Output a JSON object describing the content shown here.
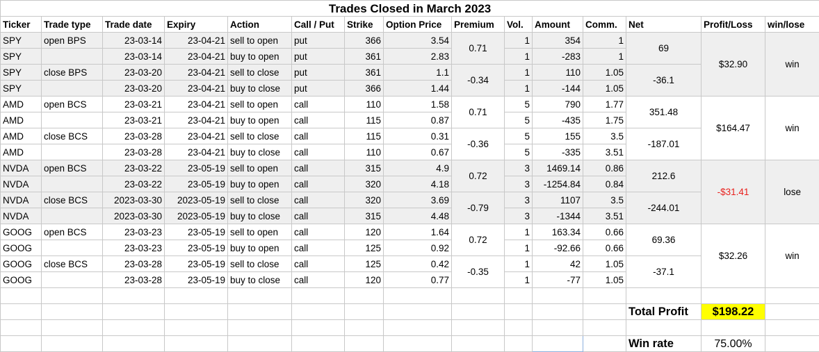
{
  "title": "Trades Closed in March 2023",
  "headers": [
    "Ticker",
    "Trade type",
    "Trade date",
    "Expiry",
    "Action",
    "Call / Put",
    "Strike",
    "Option Price",
    "Premium",
    "Vol.",
    "Amount",
    "Comm.",
    "Net",
    "Profit/Loss",
    "win/lose"
  ],
  "groups": [
    {
      "rows": [
        {
          "ticker": "SPY",
          "type": "open BPS",
          "date": "23-03-14",
          "expiry": "23-04-21",
          "action": "sell to open",
          "cp": "put",
          "strike": "366",
          "price": "3.54",
          "vol": "1",
          "amount": "354",
          "comm": "1"
        },
        {
          "ticker": "SPY",
          "type": "",
          "date": "23-03-14",
          "expiry": "23-04-21",
          "action": "buy to open",
          "cp": "put",
          "strike": "361",
          "price": "2.83",
          "vol": "1",
          "amount": "-283",
          "comm": "1"
        },
        {
          "ticker": "SPY",
          "type": "close BPS",
          "date": "23-03-20",
          "expiry": "23-04-21",
          "action": "sell to close",
          "cp": "put",
          "strike": "361",
          "price": "1.1",
          "vol": "1",
          "amount": "110",
          "comm": "1.05"
        },
        {
          "ticker": "SPY",
          "type": "",
          "date": "23-03-20",
          "expiry": "23-04-21",
          "action": "buy to close",
          "cp": "put",
          "strike": "366",
          "price": "1.44",
          "vol": "1",
          "amount": "-144",
          "comm": "1.05"
        }
      ],
      "premium_open": "0.71",
      "premium_close": "-0.34",
      "net_open": "69",
      "net_close": "-36.1",
      "pl": "$32.90",
      "result": "win"
    },
    {
      "rows": [
        {
          "ticker": "AMD",
          "type": "open BCS",
          "date": "23-03-21",
          "expiry": "23-04-21",
          "action": "sell to open",
          "cp": "call",
          "strike": "110",
          "price": "1.58",
          "vol": "5",
          "amount": "790",
          "comm": "1.77"
        },
        {
          "ticker": "AMD",
          "type": "",
          "date": "23-03-21",
          "expiry": "23-04-21",
          "action": "buy to open",
          "cp": "call",
          "strike": "115",
          "price": "0.87",
          "vol": "5",
          "amount": "-435",
          "comm": "1.75"
        },
        {
          "ticker": "AMD",
          "type": "close BCS",
          "date": "23-03-28",
          "expiry": "23-04-21",
          "action": "sell to close",
          "cp": "call",
          "strike": "115",
          "price": "0.31",
          "vol": "5",
          "amount": "155",
          "comm": "3.5"
        },
        {
          "ticker": "AMD",
          "type": "",
          "date": "23-03-28",
          "expiry": "23-04-21",
          "action": "buy to close",
          "cp": "call",
          "strike": "110",
          "price": "0.67",
          "vol": "5",
          "amount": "-335",
          "comm": "3.51"
        }
      ],
      "premium_open": "0.71",
      "premium_close": "-0.36",
      "net_open": "351.48",
      "net_close": "-187.01",
      "pl": "$164.47",
      "result": "win"
    },
    {
      "rows": [
        {
          "ticker": "NVDA",
          "type": "open BCS",
          "date": "23-03-22",
          "expiry": "23-05-19",
          "action": "sell to open",
          "cp": "call",
          "strike": "315",
          "price": "4.9",
          "vol": "3",
          "amount": "1469.14",
          "comm": "0.86"
        },
        {
          "ticker": "NVDA",
          "type": "",
          "date": "23-03-22",
          "expiry": "23-05-19",
          "action": "buy to open",
          "cp": "call",
          "strike": "320",
          "price": "4.18",
          "vol": "3",
          "amount": "-1254.84",
          "comm": "0.84"
        },
        {
          "ticker": "NVDA",
          "type": "close BCS",
          "date": "2023-03-30",
          "expiry": "2023-05-19",
          "action": "sell to close",
          "cp": "call",
          "strike": "320",
          "price": "3.69",
          "vol": "3",
          "amount": "1107",
          "comm": "3.5"
        },
        {
          "ticker": "NVDA",
          "type": "",
          "date": "2023-03-30",
          "expiry": "2023-05-19",
          "action": "buy to close",
          "cp": "call",
          "strike": "315",
          "price": "4.48",
          "vol": "3",
          "amount": "-1344",
          "comm": "3.51"
        }
      ],
      "premium_open": "0.72",
      "premium_close": "-0.79",
      "net_open": "212.6",
      "net_close": "-244.01",
      "pl": "-$31.41",
      "result": "lose"
    },
    {
      "rows": [
        {
          "ticker": "GOOG",
          "type": "open BCS",
          "date": "23-03-23",
          "expiry": "23-05-19",
          "action": "sell to open",
          "cp": "call",
          "strike": "120",
          "price": "1.64",
          "vol": "1",
          "amount": "163.34",
          "comm": "0.66"
        },
        {
          "ticker": "GOOG",
          "type": "",
          "date": "23-03-23",
          "expiry": "23-05-19",
          "action": "buy to open",
          "cp": "call",
          "strike": "125",
          "price": "0.92",
          "vol": "1",
          "amount": "-92.66",
          "comm": "0.66"
        },
        {
          "ticker": "GOOG",
          "type": "close BCS",
          "date": "23-03-28",
          "expiry": "23-05-19",
          "action": "sell to close",
          "cp": "call",
          "strike": "125",
          "price": "0.42",
          "vol": "1",
          "amount": "42",
          "comm": "1.05"
        },
        {
          "ticker": "GOOG",
          "type": "",
          "date": "23-03-28",
          "expiry": "23-05-19",
          "action": "buy to close",
          "cp": "call",
          "strike": "120",
          "price": "0.77",
          "vol": "1",
          "amount": "-77",
          "comm": "1.05"
        }
      ],
      "premium_open": "0.72",
      "premium_close": "-0.35",
      "net_open": "69.36",
      "net_close": "-37.1",
      "pl": "$32.26",
      "result": "win"
    }
  ],
  "summary": {
    "total_profit_label": "Total Profit",
    "total_profit_value": "$198.22",
    "win_rate_label": "Win rate",
    "win_rate_value": "75.00%"
  },
  "colors": {
    "shade": "#efefef",
    "negative": "#e8201c",
    "highlight": "#ffff00",
    "selection": "#8db0dd"
  }
}
